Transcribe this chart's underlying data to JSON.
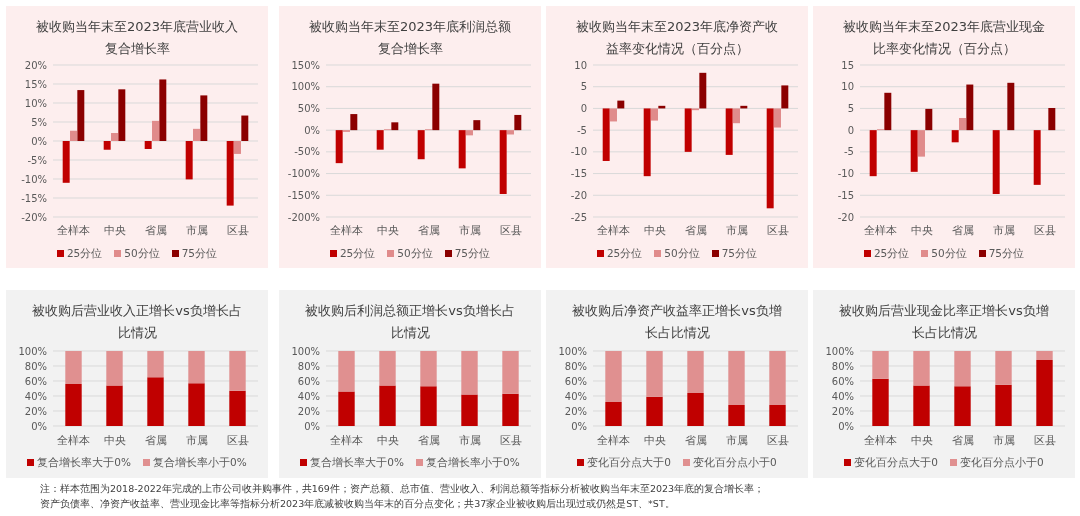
{
  "chart_data": [
    {
      "type": "bar",
      "title": "被收购当年末至2023年底营业收入复合增长率",
      "categories": [
        "全样本",
        "中央",
        "省属",
        "市属",
        "区县"
      ],
      "ylim": [
        -20,
        20
      ],
      "yticks": [
        {
          "value": -20,
          "label": "-20%"
        },
        {
          "value": -15,
          "label": "-15%"
        },
        {
          "value": -10,
          "label": "-10%"
        },
        {
          "value": -5,
          "label": "-5%"
        },
        {
          "value": 0,
          "label": "0%"
        },
        {
          "value": 5,
          "label": "5%"
        },
        {
          "value": 10,
          "label": "10%"
        },
        {
          "value": 15,
          "label": "15%"
        },
        {
          "value": 20,
          "label": "20%"
        }
      ],
      "grid": "y",
      "legend": "bottom",
      "series": [
        {
          "name": "25分位",
          "color": "#c00000",
          "values": [
            -11,
            -2.3,
            -2.1,
            -10.1,
            -17
          ]
        },
        {
          "name": "50分位",
          "color": "#e08b8b",
          "values": [
            2.7,
            2.1,
            5.3,
            3.2,
            -3.4
          ]
        },
        {
          "name": "75分位",
          "color": "#8b0000",
          "values": [
            13.4,
            13.6,
            16.2,
            12,
            6.7
          ]
        }
      ]
    },
    {
      "type": "bar",
      "title": "被收购当年末至2023年底利润总额复合增长率",
      "categories": [
        "全样本",
        "中央",
        "省属",
        "市属",
        "区县"
      ],
      "ylim": [
        -200,
        150
      ],
      "yticks": [
        {
          "value": -200,
          "label": "-200%"
        },
        {
          "value": -150,
          "label": "-150%"
        },
        {
          "value": -100,
          "label": "-100%"
        },
        {
          "value": -50,
          "label": "-50%"
        },
        {
          "value": 0,
          "label": "0%"
        },
        {
          "value": 50,
          "label": "50%"
        },
        {
          "value": 100,
          "label": "100%"
        },
        {
          "value": 150,
          "label": "150%"
        }
      ],
      "grid": "y",
      "legend": "bottom",
      "series": [
        {
          "name": "25分位",
          "color": "#c00000",
          "values": [
            -76,
            -45,
            -67,
            -88,
            -147
          ]
        },
        {
          "name": "50分位",
          "color": "#e08b8b",
          "values": [
            -4,
            2,
            2,
            -12,
            -10
          ]
        },
        {
          "name": "75分位",
          "color": "#8b0000",
          "values": [
            37,
            18,
            107,
            23,
            35
          ]
        }
      ]
    },
    {
      "type": "bar",
      "title": "被收购当年末至2023年底净资产收益率变化情况（百分点）",
      "categories": [
        "全样本",
        "中央",
        "省属",
        "市属",
        "区县"
      ],
      "ylim": [
        -25,
        10
      ],
      "yticks": [
        -25,
        -20,
        -15,
        -10,
        -5,
        0,
        5,
        10
      ],
      "grid": "y",
      "legend": "bottom",
      "series": [
        {
          "name": "25分位",
          "color": "#c00000",
          "values": [
            -12.1,
            -15.6,
            -10,
            -10.7,
            -23
          ]
        },
        {
          "name": "50分位",
          "color": "#e08b8b",
          "values": [
            -3,
            -2.8,
            -0.4,
            -3.4,
            -4.4
          ]
        },
        {
          "name": "75分位",
          "color": "#8b0000",
          "values": [
            1.8,
            0.6,
            8.2,
            0.6,
            5.3
          ]
        }
      ]
    },
    {
      "type": "bar",
      "title": "被收购当年末至2023年底营业现金比率变化情况（百分点）",
      "categories": [
        "全样本",
        "中央",
        "省属",
        "市属",
        "区县"
      ],
      "ylim": [
        -20,
        15
      ],
      "yticks": [
        -20,
        -15,
        -10,
        -5,
        0,
        5,
        10,
        15
      ],
      "grid": "y",
      "legend": "bottom",
      "series": [
        {
          "name": "25分位",
          "color": "#c00000",
          "values": [
            -10.6,
            -9.6,
            -2.8,
            -14.7,
            -12.6
          ]
        },
        {
          "name": "50分位",
          "color": "#e08b8b",
          "values": [
            0.2,
            -6.1,
            2.8,
            0,
            0
          ]
        },
        {
          "name": "75分位",
          "color": "#8b0000",
          "values": [
            8.6,
            4.9,
            10.5,
            10.9,
            5.1
          ]
        }
      ]
    },
    {
      "type": "bar",
      "stacked": true,
      "title": "被收购后营业收入正增长vs负增长占比情况",
      "categories": [
        "全样本",
        "中央",
        "省属",
        "市属",
        "区县"
      ],
      "ylim": [
        0,
        100
      ],
      "yticks": [
        {
          "value": 0,
          "label": "0%"
        },
        {
          "value": 20,
          "label": "20%"
        },
        {
          "value": 40,
          "label": "40%"
        },
        {
          "value": 60,
          "label": "60%"
        },
        {
          "value": 80,
          "label": "80%"
        },
        {
          "value": 100,
          "label": "100%"
        }
      ],
      "grid": "y",
      "legend": "bottom",
      "series": [
        {
          "name": "复合增长率大于0%",
          "color": "#c00000",
          "values": [
            56,
            54,
            65,
            57,
            47
          ]
        },
        {
          "name": "复合增长率小于0%",
          "color": "#e09090",
          "values": [
            44,
            46,
            35,
            43,
            53
          ]
        }
      ]
    },
    {
      "type": "bar",
      "stacked": true,
      "title": "被收购后利润总额正增长vs负增长占比情况",
      "categories": [
        "全样本",
        "中央",
        "省属",
        "市属",
        "区县"
      ],
      "ylim": [
        0,
        100
      ],
      "yticks": [
        {
          "value": 0,
          "label": "0%"
        },
        {
          "value": 20,
          "label": "20%"
        },
        {
          "value": 40,
          "label": "40%"
        },
        {
          "value": 60,
          "label": "60%"
        },
        {
          "value": 80,
          "label": "80%"
        },
        {
          "value": 100,
          "label": "100%"
        }
      ],
      "grid": "y",
      "legend": "bottom",
      "series": [
        {
          "name": "复合增长率大于0%",
          "color": "#c00000",
          "values": [
            46,
            54,
            53,
            42,
            43
          ]
        },
        {
          "name": "复合增长率小于0%",
          "color": "#e09090",
          "values": [
            54,
            46,
            47,
            58,
            57
          ]
        }
      ]
    },
    {
      "type": "bar",
      "stacked": true,
      "title": "被收购后净资产收益率正增长vs负增长占比情况",
      "categories": [
        "全样本",
        "中央",
        "省属",
        "市属",
        "区县"
      ],
      "ylim": [
        0,
        100
      ],
      "yticks": [
        {
          "value": 0,
          "label": "0%"
        },
        {
          "value": 20,
          "label": "20%"
        },
        {
          "value": 40,
          "label": "40%"
        },
        {
          "value": 60,
          "label": "60%"
        },
        {
          "value": 80,
          "label": "80%"
        },
        {
          "value": 100,
          "label": "100%"
        }
      ],
      "grid": "y",
      "legend": "bottom",
      "series": [
        {
          "name": "变化百分点大于0",
          "color": "#c00000",
          "values": [
            32,
            39,
            44,
            28,
            28
          ]
        },
        {
          "name": "变化百分点小于0",
          "color": "#e09090",
          "values": [
            68,
            61,
            56,
            72,
            72
          ]
        }
      ]
    },
    {
      "type": "bar",
      "stacked": true,
      "title": "被收购后营业现金比率正增长vs负增长占比情况",
      "categories": [
        "全样本",
        "中央",
        "省属",
        "市属",
        "区县"
      ],
      "ylim": [
        0,
        100
      ],
      "yticks": [
        {
          "value": 0,
          "label": "0%"
        },
        {
          "value": 20,
          "label": "20%"
        },
        {
          "value": 40,
          "label": "40%"
        },
        {
          "value": 60,
          "label": "60%"
        },
        {
          "value": 80,
          "label": "80%"
        },
        {
          "value": 100,
          "label": "100%"
        }
      ],
      "grid": "y",
      "legend": "bottom",
      "series": [
        {
          "name": "变化百分点大于0",
          "color": "#c00000",
          "values": [
            63,
            54,
            53,
            55,
            88
          ]
        },
        {
          "name": "变化百分点小于0",
          "color": "#e09090",
          "values": [
            37,
            46,
            47,
            45,
            12
          ]
        }
      ]
    },
    {
      "type": "other",
      "annotations": [
        "注：样本范围为2018-2022年完成的上市公司收并购事件，共169件；资产总额、总市值、营业收入、利润总额等指标分析被收购当年末至2023年底的复合增长率；",
        "资产负债率、净资产收益率、营业现金比率等指标分析2023年底减被收购当年末的百分点变化；共37家企业被收购后出现过或仍然是ST、*ST。"
      ]
    }
  ]
}
